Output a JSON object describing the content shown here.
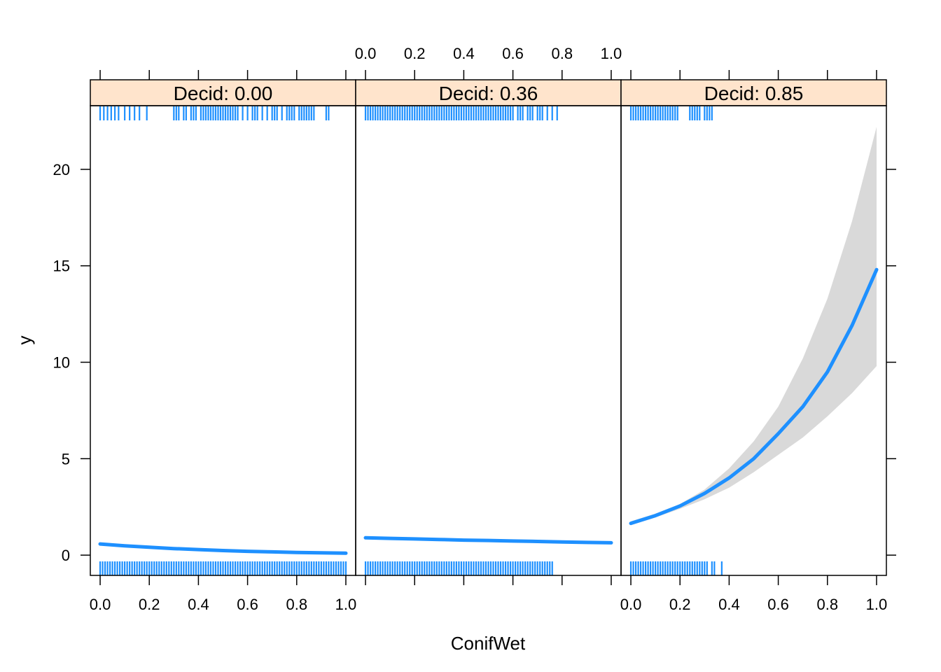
{
  "chart_data": {
    "type": "line",
    "xlabel": "ConifWet",
    "ylabel": "y",
    "xlim": [
      -0.04,
      1.04
    ],
    "ylim": [
      -1.05,
      23.3
    ],
    "x_ticks": [
      0.0,
      0.2,
      0.4,
      0.6,
      0.8,
      1.0
    ],
    "x_tick_labels": [
      "0.0",
      "0.2",
      "0.4",
      "0.6",
      "0.8",
      "1.0"
    ],
    "y_ticks": [
      0,
      5,
      10,
      15,
      20
    ],
    "y_tick_labels": [
      "0",
      "5",
      "10",
      "15",
      "20"
    ],
    "line_color": "#1e90ff",
    "band_color": "#d9d9d9",
    "strip_color": "#ffe4cc",
    "panels": [
      {
        "strip_label": "Decid: 0.00",
        "fit": {
          "x": [
            0.0,
            0.1,
            0.2,
            0.3,
            0.4,
            0.5,
            0.6,
            0.7,
            0.8,
            0.9,
            1.0
          ],
          "y": [
            0.58,
            0.48,
            0.41,
            0.34,
            0.29,
            0.24,
            0.2,
            0.17,
            0.14,
            0.12,
            0.1
          ]
        },
        "rug_bottom_x": [
          0.0,
          0.01,
          0.02,
          0.03,
          0.04,
          0.05,
          0.06,
          0.07,
          0.08,
          0.09,
          0.1,
          0.11,
          0.12,
          0.13,
          0.14,
          0.15,
          0.16,
          0.17,
          0.18,
          0.19,
          0.2,
          0.21,
          0.22,
          0.23,
          0.24,
          0.25,
          0.26,
          0.27,
          0.28,
          0.29,
          0.3,
          0.31,
          0.32,
          0.33,
          0.34,
          0.35,
          0.36,
          0.37,
          0.38,
          0.39,
          0.4,
          0.41,
          0.42,
          0.43,
          0.44,
          0.45,
          0.46,
          0.47,
          0.48,
          0.49,
          0.5,
          0.51,
          0.52,
          0.53,
          0.54,
          0.55,
          0.56,
          0.57,
          0.58,
          0.59,
          0.6,
          0.61,
          0.62,
          0.63,
          0.64,
          0.65,
          0.66,
          0.67,
          0.68,
          0.69,
          0.7,
          0.71,
          0.72,
          0.73,
          0.74,
          0.75,
          0.76,
          0.77,
          0.78,
          0.79,
          0.8,
          0.81,
          0.82,
          0.83,
          0.84,
          0.85,
          0.86,
          0.87,
          0.88,
          0.89,
          0.9,
          0.91,
          0.92,
          0.93,
          0.94,
          0.95,
          0.96,
          0.97,
          0.98,
          0.99,
          1.0
        ],
        "rug_top_x": [
          0.0,
          0.015,
          0.03,
          0.045,
          0.06,
          0.075,
          0.1,
          0.12,
          0.14,
          0.16,
          0.19,
          0.3,
          0.31,
          0.32,
          0.34,
          0.35,
          0.37,
          0.38,
          0.39,
          0.41,
          0.42,
          0.43,
          0.44,
          0.45,
          0.46,
          0.47,
          0.48,
          0.49,
          0.5,
          0.51,
          0.52,
          0.53,
          0.54,
          0.55,
          0.56,
          0.58,
          0.6,
          0.62,
          0.63,
          0.64,
          0.66,
          0.68,
          0.7,
          0.71,
          0.72,
          0.74,
          0.76,
          0.77,
          0.78,
          0.79,
          0.81,
          0.82,
          0.83,
          0.84,
          0.85,
          0.86,
          0.87,
          0.92,
          0.93
        ]
      },
      {
        "strip_label": "Decid: 0.36",
        "fit": {
          "x": [
            0.0,
            0.1,
            0.2,
            0.3,
            0.4,
            0.5,
            0.6,
            0.7,
            0.8,
            0.9,
            1.0
          ],
          "y": [
            0.9,
            0.87,
            0.84,
            0.81,
            0.78,
            0.76,
            0.73,
            0.71,
            0.68,
            0.66,
            0.64
          ]
        },
        "rug_bottom_x": [
          0.0,
          0.01,
          0.02,
          0.03,
          0.04,
          0.05,
          0.06,
          0.07,
          0.08,
          0.09,
          0.1,
          0.11,
          0.12,
          0.13,
          0.14,
          0.15,
          0.16,
          0.17,
          0.18,
          0.19,
          0.2,
          0.21,
          0.22,
          0.23,
          0.24,
          0.25,
          0.26,
          0.27,
          0.28,
          0.29,
          0.3,
          0.31,
          0.32,
          0.33,
          0.34,
          0.35,
          0.36,
          0.37,
          0.38,
          0.39,
          0.4,
          0.41,
          0.42,
          0.43,
          0.44,
          0.45,
          0.46,
          0.47,
          0.48,
          0.49,
          0.5,
          0.51,
          0.52,
          0.53,
          0.54,
          0.55,
          0.56,
          0.57,
          0.58,
          0.59,
          0.6,
          0.61,
          0.62,
          0.63,
          0.64,
          0.65,
          0.66,
          0.67,
          0.68,
          0.69,
          0.7,
          0.71,
          0.72,
          0.73,
          0.74,
          0.75,
          0.76
        ],
        "rug_top_x": [
          0.0,
          0.01,
          0.02,
          0.03,
          0.04,
          0.05,
          0.06,
          0.07,
          0.08,
          0.09,
          0.1,
          0.11,
          0.12,
          0.13,
          0.14,
          0.15,
          0.16,
          0.17,
          0.18,
          0.19,
          0.2,
          0.21,
          0.22,
          0.23,
          0.24,
          0.25,
          0.26,
          0.27,
          0.28,
          0.29,
          0.3,
          0.31,
          0.32,
          0.33,
          0.34,
          0.35,
          0.36,
          0.37,
          0.38,
          0.39,
          0.4,
          0.41,
          0.42,
          0.43,
          0.44,
          0.45,
          0.46,
          0.47,
          0.48,
          0.49,
          0.5,
          0.51,
          0.52,
          0.53,
          0.54,
          0.55,
          0.56,
          0.57,
          0.58,
          0.59,
          0.6,
          0.62,
          0.63,
          0.64,
          0.66,
          0.67,
          0.68,
          0.7,
          0.71,
          0.72,
          0.74,
          0.76,
          0.78
        ]
      },
      {
        "strip_label": "Decid: 0.85",
        "fit": {
          "x": [
            0.0,
            0.1,
            0.2,
            0.3,
            0.4,
            0.5,
            0.6,
            0.7,
            0.8,
            0.9,
            1.0
          ],
          "y": [
            1.65,
            2.05,
            2.55,
            3.2,
            4.0,
            5.0,
            6.3,
            7.7,
            9.5,
            11.9,
            14.8
          ]
        },
        "band": {
          "x": [
            0.0,
            0.1,
            0.2,
            0.3,
            0.4,
            0.5,
            0.6,
            0.7,
            0.8,
            0.9,
            1.0
          ],
          "lower": [
            1.55,
            1.95,
            2.4,
            2.9,
            3.5,
            4.3,
            5.2,
            6.1,
            7.2,
            8.4,
            9.8
          ],
          "upper": [
            1.75,
            2.15,
            2.65,
            3.4,
            4.5,
            5.9,
            7.7,
            10.2,
            13.3,
            17.3,
            22.2
          ]
        },
        "rug_bottom_x": [
          0.0,
          0.01,
          0.02,
          0.03,
          0.04,
          0.05,
          0.06,
          0.07,
          0.08,
          0.09,
          0.1,
          0.11,
          0.12,
          0.13,
          0.14,
          0.15,
          0.16,
          0.17,
          0.18,
          0.19,
          0.2,
          0.21,
          0.22,
          0.23,
          0.24,
          0.25,
          0.26,
          0.27,
          0.28,
          0.29,
          0.3,
          0.31,
          0.33,
          0.34,
          0.37
        ],
        "rug_top_x": [
          0.0,
          0.01,
          0.02,
          0.03,
          0.04,
          0.05,
          0.06,
          0.07,
          0.08,
          0.09,
          0.1,
          0.11,
          0.12,
          0.13,
          0.14,
          0.15,
          0.16,
          0.17,
          0.18,
          0.19,
          0.24,
          0.25,
          0.26,
          0.27,
          0.28,
          0.3,
          0.31,
          0.32,
          0.33
        ]
      }
    ]
  }
}
